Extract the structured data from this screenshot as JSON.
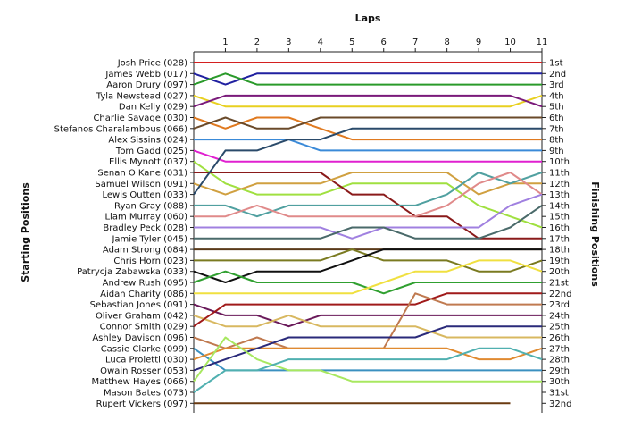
{
  "chart_data": {
    "type": "line",
    "title": "",
    "xlabel": "Laps",
    "ylabel_left": "Starting Positions",
    "ylabel_right": "Finishing Positions",
    "x": [
      0,
      1,
      2,
      3,
      4,
      5,
      6,
      7,
      8,
      9,
      10,
      11
    ],
    "x_ticks": [
      "1",
      "2",
      "3",
      "4",
      "5",
      "6",
      "7",
      "8",
      "9",
      "10",
      "11"
    ],
    "y_position_range": [
      1,
      32
    ],
    "grid": false,
    "starting_labels": [
      "Josh Price (028)",
      "James Webb (017)",
      "Aaron Drury (097)",
      "Tyla Newstead (027)",
      "Dan Kelly (029)",
      "Charlie Savage (030)",
      "Stefanos Charalambous (066)",
      "Alex Sissins (024)",
      "Tom Gadd (025)",
      "Ellis Mynott (037)",
      "Senan O Kane (031)",
      "Samuel Wilson (091)",
      "Lewis Outten (033)",
      "Ryan Gray (088)",
      "Liam Murray (060)",
      "Bradley Peck (028)",
      "Jamie Tyler (045)",
      "Adam Strong (084)",
      "Chris Horn (023)",
      "Patrycja Zabawska (033)",
      "Andrew Rush (095)",
      "Aidan Charity (086)",
      "Sebastian Jones (091)",
      "Oliver Graham (042)",
      "Connor Smith (029)",
      "Ashley Davison (096)",
      "Cassie Clarke (099)",
      "Luca Proietti (030)",
      "Owain Rosser (053)",
      "Matthew Hayes (066)",
      "Mason Bates (073)",
      "Rupert Vickers (097)"
    ],
    "finishing_labels": [
      "1st",
      "2nd",
      "3rd",
      "4th",
      "5th",
      "6th",
      "7th",
      "8th",
      "9th",
      "10th",
      "11th",
      "12th",
      "13th",
      "14th",
      "15th",
      "16th",
      "17th",
      "18th",
      "19th",
      "20th",
      "21st",
      "22nd",
      "23rd",
      "24th",
      "25th",
      "26th",
      "27th",
      "28th",
      "29th",
      "30th",
      "31st",
      "32nd"
    ],
    "series": [
      {
        "color": "#d42020",
        "positions": [
          1,
          1,
          1,
          1,
          1,
          1,
          1,
          1,
          1,
          1,
          1,
          1
        ]
      },
      {
        "color": "#2020a0",
        "positions": [
          2,
          3,
          2,
          2,
          2,
          2,
          2,
          2,
          2,
          2,
          2,
          2
        ]
      },
      {
        "color": "#2a9a2a",
        "positions": [
          3,
          2,
          3,
          3,
          3,
          3,
          3,
          3,
          3,
          3,
          3,
          3
        ]
      },
      {
        "color": "#e8d020",
        "positions": [
          4,
          5,
          5,
          5,
          5,
          5,
          5,
          5,
          5,
          5,
          5,
          4
        ]
      },
      {
        "color": "#7a1a7a",
        "positions": [
          5,
          4,
          4,
          4,
          4,
          4,
          4,
          4,
          4,
          4,
          4,
          5
        ]
      },
      {
        "color": "#e07a20",
        "positions": [
          6,
          7,
          6,
          6,
          7,
          8,
          8,
          8,
          8,
          8,
          8,
          8
        ]
      },
      {
        "color": "#6a4a2a",
        "positions": [
          7,
          6,
          7,
          7,
          6,
          6,
          6,
          6,
          6,
          6,
          6,
          6
        ]
      },
      {
        "color": "#3a8ad8",
        "positions": [
          8,
          8,
          8,
          8,
          9,
          9,
          9,
          9,
          9,
          9,
          9,
          9
        ]
      },
      {
        "color": "#e020d0",
        "positions": [
          9,
          10,
          10,
          10,
          10,
          10,
          10,
          10,
          10,
          10,
          10,
          10
        ]
      },
      {
        "color": "#a0e040",
        "positions": [
          10,
          12,
          13,
          13,
          13,
          12,
          12,
          12,
          12,
          14,
          15,
          16
        ]
      },
      {
        "color": "#8a1a1a",
        "positions": [
          11,
          11,
          11,
          11,
          11,
          13,
          13,
          15,
          15,
          17,
          17,
          17
        ]
      },
      {
        "color": "#d0a040",
        "positions": [
          12,
          13,
          12,
          12,
          12,
          11,
          11,
          11,
          11,
          13,
          12,
          12
        ]
      },
      {
        "color": "#2a4a6a",
        "positions": [
          13,
          9,
          9,
          8,
          8,
          7,
          7,
          7,
          7,
          7,
          7,
          7
        ]
      },
      {
        "color": "#50a0a0",
        "positions": [
          14,
          14,
          15,
          14,
          14,
          14,
          14,
          14,
          13,
          11,
          12,
          11
        ]
      },
      {
        "color": "#e08a8a",
        "positions": [
          15,
          15,
          14,
          15,
          15,
          15,
          15,
          15,
          14,
          12,
          11,
          13
        ]
      },
      {
        "color": "#a080e0",
        "positions": [
          16,
          16,
          16,
          16,
          16,
          17,
          16,
          16,
          16,
          16,
          14,
          13
        ]
      },
      {
        "color": "#4a6a6a",
        "positions": [
          17,
          17,
          17,
          17,
          17,
          16,
          16,
          17,
          17,
          17,
          16,
          14
        ]
      },
      {
        "color": "#5a3a1a",
        "positions": [
          18,
          18,
          18,
          18,
          18,
          18,
          18,
          18,
          18,
          18,
          18,
          18
        ]
      },
      {
        "color": "#7a7a20",
        "positions": [
          19,
          19,
          19,
          19,
          19,
          18,
          19,
          19,
          19,
          20,
          20,
          19
        ]
      },
      {
        "color": "#101010",
        "positions": [
          20,
          21,
          20,
          20,
          20,
          19,
          18,
          18,
          18,
          18,
          18,
          18
        ]
      },
      {
        "color": "#30a030",
        "positions": [
          21,
          20,
          21,
          21,
          21,
          21,
          22,
          21,
          21,
          21,
          21,
          21
        ]
      },
      {
        "color": "#f0e040",
        "positions": [
          22,
          22,
          22,
          22,
          22,
          22,
          21,
          20,
          20,
          19,
          19,
          20
        ]
      },
      {
        "color": "#6a1a5a",
        "positions": [
          23,
          24,
          24,
          25,
          24,
          24,
          24,
          24,
          24,
          24,
          24,
          24
        ]
      },
      {
        "color": "#d8b860",
        "positions": [
          24,
          25,
          25,
          24,
          25,
          25,
          25,
          25,
          26,
          26,
          26,
          26
        ]
      },
      {
        "color": "#a01a1a",
        "positions": [
          25,
          23,
          23,
          23,
          23,
          23,
          23,
          23,
          22,
          22,
          22,
          22
        ]
      },
      {
        "color": "#c07a50",
        "positions": [
          26,
          27,
          26,
          27,
          27,
          27,
          27,
          22,
          23,
          23,
          23,
          23
        ]
      },
      {
        "color": "#3a90c0",
        "positions": [
          27,
          29,
          29,
          29,
          29,
          29,
          29,
          29,
          29,
          29,
          29,
          29
        ]
      },
      {
        "color": "#e08a30",
        "positions": [
          28,
          27,
          27,
          27,
          27,
          27,
          27,
          27,
          27,
          28,
          28,
          27
        ]
      },
      {
        "color": "#2a2a7a",
        "positions": [
          29,
          28,
          27,
          26,
          26,
          26,
          26,
          26,
          25,
          25,
          25,
          25
        ]
      },
      {
        "color": "#a8e860",
        "positions": [
          30,
          26,
          28,
          29,
          29,
          30,
          30,
          30,
          30,
          30,
          30,
          30
        ]
      },
      {
        "color": "#50b0b0",
        "positions": [
          31,
          29,
          29,
          28,
          28,
          28,
          28,
          28,
          28,
          27,
          27,
          28
        ]
      },
      {
        "color": "#6a3a10",
        "positions": [
          32,
          32,
          32,
          32,
          32,
          32,
          32,
          32,
          32,
          32,
          32,
          null
        ]
      }
    ]
  }
}
